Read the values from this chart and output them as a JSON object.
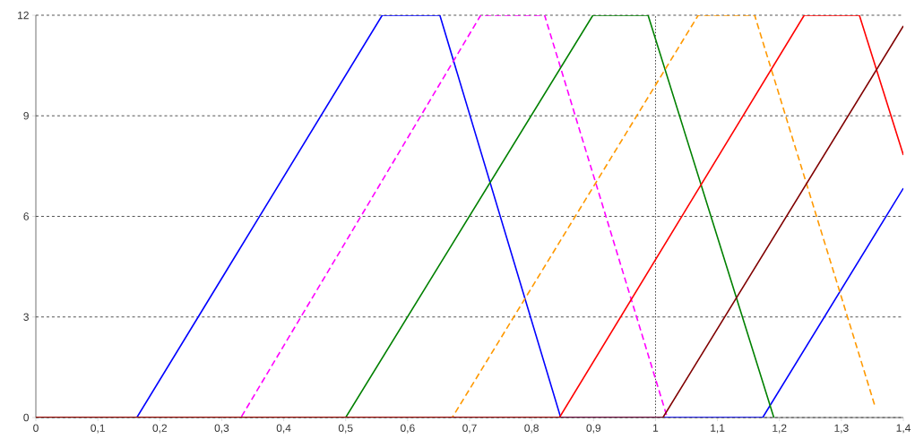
{
  "chart_data": {
    "type": "line",
    "series": [
      {
        "color": "#0000ff",
        "line_style": "solid",
        "x": [
          0,
          0.163,
          0.559,
          0.652,
          0.847,
          1.173,
          1.4
        ],
        "values": [
          0,
          0,
          12,
          12,
          0,
          0,
          6.84
        ]
      },
      {
        "color": "#ff00ff",
        "line_style": "dashed",
        "x": [
          0,
          0.331,
          0.718,
          0.821,
          1.019
        ],
        "values": [
          0,
          0,
          12,
          12,
          0
        ]
      },
      {
        "color": "#008000",
        "line_style": "solid",
        "x": [
          0,
          0.5,
          0.899,
          0.988,
          1.191
        ],
        "values": [
          0,
          0,
          12,
          12,
          0
        ]
      },
      {
        "color": "#ff9900",
        "line_style": "dashed",
        "x": [
          0,
          0.672,
          1.069,
          1.16,
          1.354
        ],
        "values": [
          0,
          0,
          12,
          12,
          0.35
        ]
      },
      {
        "color": "#ff0000",
        "line_style": "solid",
        "x": [
          0,
          0.845,
          1.24,
          1.329,
          1.4
        ],
        "values": [
          0,
          0,
          12,
          12,
          7.83
        ]
      },
      {
        "color": "#800000",
        "line_style": "solid",
        "x": [
          0,
          1.012,
          1.4
        ],
        "values": [
          0,
          0,
          11.68
        ]
      }
    ],
    "xlim": [
      0,
      1.4
    ],
    "ylim": [
      0,
      12
    ],
    "xticks": [
      0,
      {
        "value": 0.1,
        "label": "0,1"
      },
      {
        "value": 0.2,
        "label": "0,2"
      },
      {
        "value": 0.3,
        "label": "0,3"
      },
      {
        "value": 0.4,
        "label": "0,4"
      },
      {
        "value": 0.5,
        "label": "0,5"
      },
      {
        "value": 0.6,
        "label": "0,6"
      },
      {
        "value": 0.7,
        "label": "0,7"
      },
      {
        "value": 0.8,
        "label": "0,8"
      },
      {
        "value": 0.9,
        "label": "0,9"
      },
      1,
      {
        "value": 1.1,
        "label": "1,1"
      },
      {
        "value": 1.2,
        "label": "1,2"
      },
      {
        "value": 1.3,
        "label": "1,3"
      },
      {
        "value": 1.4,
        "label": "1,4"
      }
    ],
    "yticks": [
      0,
      3,
      6,
      9,
      12
    ],
    "grid": "y",
    "ref_lines": [
      {
        "axis": "x",
        "value": 1,
        "line_style": "dotted",
        "color": "#000000"
      }
    ],
    "marker": "none"
  }
}
